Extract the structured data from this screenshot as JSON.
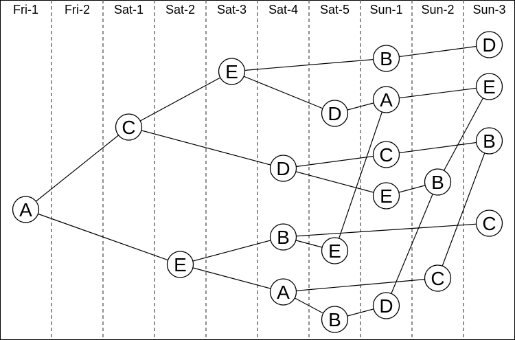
{
  "columns": [
    "Fri-1",
    "Fri-2",
    "Sat-1",
    "Sat-2",
    "Sat-3",
    "Sat-4",
    "Sat-5",
    "Sun-1",
    "Sun-2",
    "Sun-3"
  ],
  "nodes": [
    {
      "id": "n_fri1_A",
      "label": "A",
      "col": 0
    },
    {
      "id": "n_sat1_C",
      "label": "C",
      "col": 2
    },
    {
      "id": "n_sat2_E",
      "label": "E",
      "col": 3
    },
    {
      "id": "n_sat3_E",
      "label": "E",
      "col": 4
    },
    {
      "id": "n_sat4_D",
      "label": "D",
      "col": 5
    },
    {
      "id": "n_sat4_B",
      "label": "B",
      "col": 5
    },
    {
      "id": "n_sat4_A",
      "label": "A",
      "col": 5
    },
    {
      "id": "n_sat5_D",
      "label": "D",
      "col": 6
    },
    {
      "id": "n_sat5_E",
      "label": "E",
      "col": 6
    },
    {
      "id": "n_sat5_B",
      "label": "B",
      "col": 6
    },
    {
      "id": "n_sun1_B",
      "label": "B",
      "col": 7
    },
    {
      "id": "n_sun1_A",
      "label": "A",
      "col": 7
    },
    {
      "id": "n_sun1_C",
      "label": "C",
      "col": 7
    },
    {
      "id": "n_sun1_E",
      "label": "E",
      "col": 7
    },
    {
      "id": "n_sun1_D",
      "label": "D",
      "col": 7
    },
    {
      "id": "n_sun2_B",
      "label": "B",
      "col": 8
    },
    {
      "id": "n_sun2_C",
      "label": "C",
      "col": 8
    },
    {
      "id": "n_sun3_D",
      "label": "D",
      "col": 9
    },
    {
      "id": "n_sun3_E",
      "label": "E",
      "col": 9
    },
    {
      "id": "n_sun3_B",
      "label": "B",
      "col": 9
    },
    {
      "id": "n_sun3_C",
      "label": "C",
      "col": 9
    }
  ],
  "edges": [
    [
      "n_fri1_A",
      "n_sat1_C"
    ],
    [
      "n_fri1_A",
      "n_sat2_E"
    ],
    [
      "n_sat1_C",
      "n_sat3_E"
    ],
    [
      "n_sat1_C",
      "n_sat4_D"
    ],
    [
      "n_sat3_E",
      "n_sun1_B"
    ],
    [
      "n_sat3_E",
      "n_sat5_D"
    ],
    [
      "n_sun1_B",
      "n_sun3_D"
    ],
    [
      "n_sat5_D",
      "n_sun1_A"
    ],
    [
      "n_sun1_A",
      "n_sun3_E"
    ],
    [
      "n_sun1_A",
      "n_sat5_E"
    ],
    [
      "n_sat4_D",
      "n_sun1_C"
    ],
    [
      "n_sat4_D",
      "n_sun1_E"
    ],
    [
      "n_sun1_C",
      "n_sun3_B"
    ],
    [
      "n_sun1_E",
      "n_sun2_B"
    ],
    [
      "n_sun2_B",
      "n_sun3_E"
    ],
    [
      "n_sun2_B",
      "n_sun1_D"
    ],
    [
      "n_sat2_E",
      "n_sat4_B"
    ],
    [
      "n_sat2_E",
      "n_sat4_A"
    ],
    [
      "n_sat4_B",
      "n_sat5_E"
    ],
    [
      "n_sat4_B",
      "n_sun3_C"
    ],
    [
      "n_sat4_A",
      "n_sun2_C"
    ],
    [
      "n_sat4_A",
      "n_sat5_B"
    ],
    [
      "n_sat5_B",
      "n_sun1_D"
    ],
    [
      "n_sun2_C",
      "n_sun3_B"
    ]
  ]
}
